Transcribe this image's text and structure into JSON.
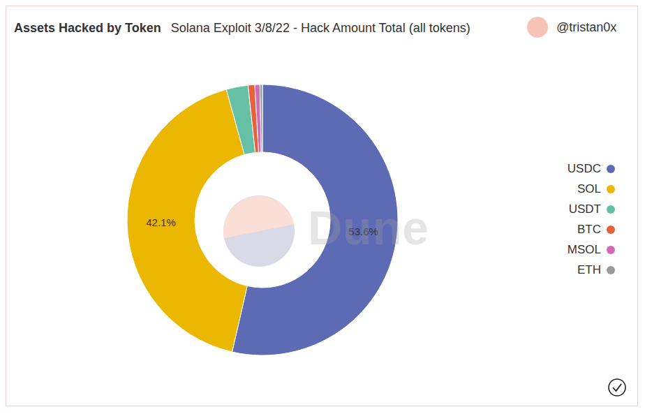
{
  "chart_data": {
    "type": "pie",
    "title": "Assets Hacked by Token",
    "subtitle": "Solana Exploit 3/8/22 - Hack Amount Total (all tokens)",
    "annotations": [
      "@tristan0x",
      "Dune"
    ],
    "categories": [
      "USDC",
      "SOL",
      "USDT",
      "BTC",
      "MSOL",
      "ETH"
    ],
    "values": [
      53.6,
      42.1,
      2.6,
      0.8,
      0.6,
      0.3
    ],
    "value_labels": [
      "53.6%",
      "42.1%",
      null,
      null,
      null,
      null
    ],
    "colors": [
      "#5d6bb5",
      "#ebb700",
      "#66c0a5",
      "#e5623c",
      "#d26ab4",
      "#9a9a9a"
    ],
    "data_labels": true,
    "legend": "right"
  }
}
